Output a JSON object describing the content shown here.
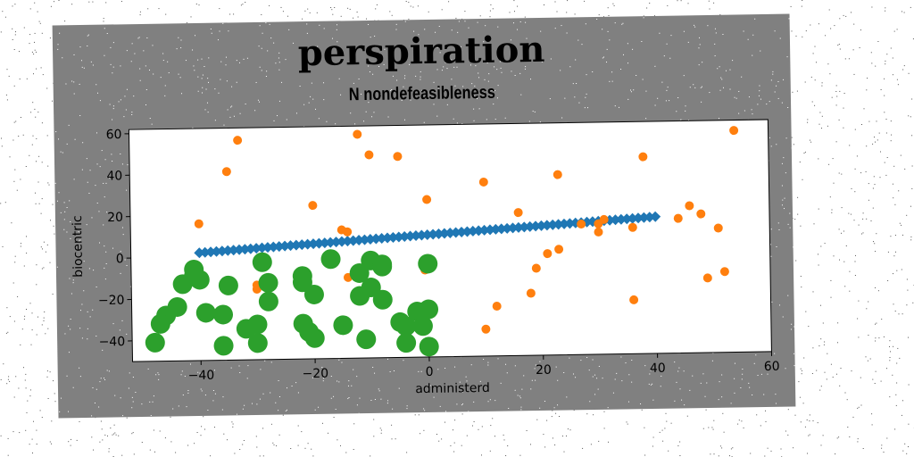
{
  "chart_data": {
    "type": "scatter",
    "title": "perspiration",
    "subtitle": "N nondefeasibleness",
    "xlabel": "administerd",
    "ylabel": "biocentric",
    "xlim": [
      -52,
      60
    ],
    "ylim": [
      -50,
      62
    ],
    "xticks": [
      -40,
      -20,
      0,
      20,
      40,
      60
    ],
    "yticks": [
      -40,
      -20,
      0,
      20,
      40,
      60
    ],
    "grid": false,
    "legend": "none",
    "series": [
      {
        "color": "#1f77b4",
        "marker": "diamond",
        "x": [
          -40,
          -39,
          -38,
          -37,
          -36,
          -35,
          -34,
          -33,
          -32,
          -31,
          -30,
          -29,
          -28,
          -27,
          -26,
          -25,
          -24,
          -23,
          -22,
          -21,
          -20,
          -19,
          -18,
          -17,
          -16,
          -15,
          -14,
          -13,
          -12,
          -11,
          -10,
          -9,
          -8,
          -7,
          -6,
          -5,
          -4,
          -3,
          -2,
          -1,
          0,
          1,
          2,
          3,
          4,
          5,
          6,
          7,
          8,
          9,
          10,
          11,
          12,
          13,
          14,
          15,
          16,
          17,
          18,
          19,
          20,
          21,
          22,
          23,
          24,
          25,
          26,
          27,
          28,
          29,
          30,
          31,
          32,
          33,
          34,
          35,
          36,
          37,
          38,
          39,
          40
        ],
        "y": [
          2,
          2.17,
          2.35,
          2.52,
          2.7,
          2.87,
          3.05,
          3.22,
          3.4,
          3.57,
          3.75,
          3.92,
          4.1,
          4.27,
          4.45,
          4.62,
          4.8,
          4.97,
          5.15,
          5.32,
          5.5,
          5.67,
          5.85,
          6.02,
          6.2,
          6.37,
          6.55,
          6.72,
          6.9,
          7.07,
          7.25,
          7.42,
          7.6,
          7.77,
          7.95,
          8.12,
          8.3,
          8.47,
          8.65,
          8.82,
          9,
          9.17,
          9.35,
          9.52,
          9.7,
          9.87,
          10.05,
          10.22,
          10.4,
          10.57,
          10.75,
          10.92,
          11.1,
          11.27,
          11.45,
          11.62,
          11.8,
          11.97,
          12.15,
          12.32,
          12.5,
          12.67,
          12.85,
          13.02,
          13.2,
          13.37,
          13.55,
          13.72,
          13.9,
          14.07,
          14.25,
          14.42,
          14.6,
          14.77,
          14.95,
          15.12,
          15.3,
          15.47,
          15.65,
          15.82,
          16
        ]
      },
      {
        "color": "#ff7f0e",
        "marker": "circle",
        "x": [
          -33,
          -35,
          -40,
          -20,
          -15,
          -14,
          -14,
          -30,
          -30,
          -12,
          -10,
          -5,
          0,
          -0.5,
          10,
          10,
          12,
          16,
          18,
          19,
          21,
          23,
          23,
          27,
          30,
          31,
          30,
          36,
          36,
          38,
          44,
          46,
          48,
          49,
          51,
          52,
          54
        ],
        "y": [
          56,
          41,
          16,
          24,
          12,
          11,
          -11,
          -14,
          -16,
          58,
          48,
          47,
          26,
          -8,
          34,
          -37,
          -26,
          19,
          -20,
          -8,
          -1,
          1,
          37,
          13,
          13,
          15,
          9,
          -24,
          11,
          45,
          15,
          21,
          17,
          -14,
          10,
          -11,
          57
        ]
      },
      {
        "color": "#2ca02c",
        "marker": "circle-large",
        "x": [
          -41,
          -43,
          -41,
          -40,
          -44,
          -46,
          -47,
          -48,
          -39,
          -36,
          -36,
          -35,
          -29,
          -28,
          -28,
          -30,
          -32,
          -30,
          -22,
          -22,
          -21,
          -22,
          -20,
          -20,
          -17,
          -15,
          -12,
          -12,
          -11,
          -10,
          -10,
          -8,
          -8,
          -8,
          -5,
          -4,
          -4,
          -2,
          -1,
          0,
          0,
          0
        ],
        "y": [
          -6,
          -13,
          -9,
          -11,
          -24,
          -28,
          -32,
          -41,
          -27,
          -28,
          -43,
          -14,
          -3,
          -13,
          -22,
          -33,
          -35,
          -42,
          -10,
          -13,
          -37,
          -33,
          -19,
          -40,
          -2,
          -34,
          -9,
          -20,
          -41,
          -16,
          -3,
          -5,
          -6,
          -22,
          -33,
          -35,
          -43,
          -28,
          -35,
          -45,
          -27,
          -5
        ]
      }
    ]
  }
}
